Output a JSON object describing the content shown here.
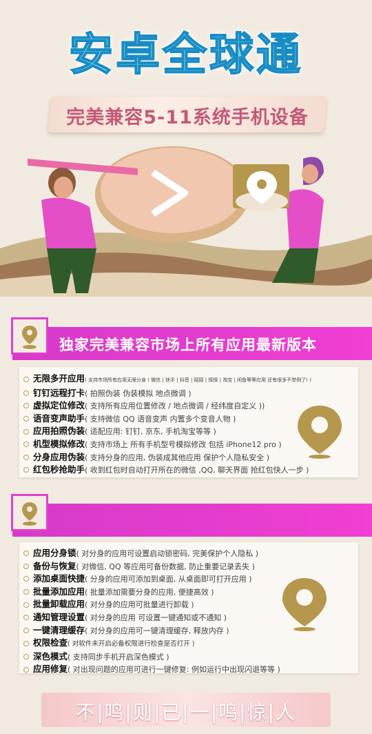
{
  "title": "安卓全球通",
  "subtitle": "完美兼容5-11系统手机设备",
  "section1": {
    "title": "独家完美兼容市场上所有应用最新版本",
    "items": [
      {
        "k": "无限多开应用",
        "d": "( 支持市场所有应用无限分身 ( 微信 | 快手 | 抖音 | 陌陌 | 探探 | 淘宝 | 闲鱼等等应用 还有很多不举例了! )"
      },
      {
        "k": "钉钉远程打卡",
        "d": "( 拍照伪装 伪装模拟 地点微调 )"
      },
      {
        "k": "虚拟定位修改",
        "d": "( 支持所有应用位置修改 / 地点微调 / 经纬度自定义 ))"
      },
      {
        "k": "语音变声助手",
        "d": "( 支持微信 QQ 语音变声 内置多个变音人物 )"
      },
      {
        "k": "应用拍照伪装",
        "d": "( 适配应用: 钉钉, 京东, 手机淘宝等等 )"
      },
      {
        "k": "机型模拟修改",
        "d": "( 支持市场上 所有手机型号模拟修改 包括 iPhone12 pro )"
      },
      {
        "k": "分身应用伪装",
        "d": "( 支持分身的应用, 伪装成其他应用 保护个人隐私安全 )"
      },
      {
        "k": "红包秒抢助手",
        "d": "( 收到红包时自动打开所在的微信 ,QQ, 聊天界面 抢红包快人一步 )"
      }
    ]
  },
  "section2": {
    "items": [
      {
        "k": "应用分身锁",
        "d": "( 对分身的应用可设置启动锁密码, 完美保护个人隐私 )"
      },
      {
        "k": "备份与恢复",
        "d": "( 对微信, QQ 等应用可备份数据, 防止重要记录丢失 )"
      },
      {
        "k": "添加桌面快捷",
        "d": "( 分身的应用可添加到桌面, 从桌面即可打开应用 )"
      },
      {
        "k": "批量添加应用",
        "d": "( 批量添加需要分身的应用, 便捷高效 )"
      },
      {
        "k": "批量卸载应用",
        "d": "( 对分身的应用可批量进行卸载 )"
      },
      {
        "k": "通知管理设置",
        "d": "( 对分身的应用 可设置一键通知或不通知 )"
      },
      {
        "k": "一键清理缓存",
        "d": "( 对分身的应用可一键清理缓存, 释放内存 )"
      },
      {
        "k": "权限检查",
        "d": "( 对软件未开启必备权限进行检查是否打开 )"
      },
      {
        "k": "深色模式",
        "d": "( 支持同步手机开启深色模式 )"
      },
      {
        "k": "应用修复",
        "d": "( 对出现问题的应用可进行一键修复: 例如运行中出现闪退等等 )"
      }
    ]
  },
  "bottom": "不|鸣|则|已|一|鸣|惊|人",
  "colors": {
    "accent": "#e23fcd",
    "gold": "#b5984e",
    "title": "#7fd3ee"
  }
}
